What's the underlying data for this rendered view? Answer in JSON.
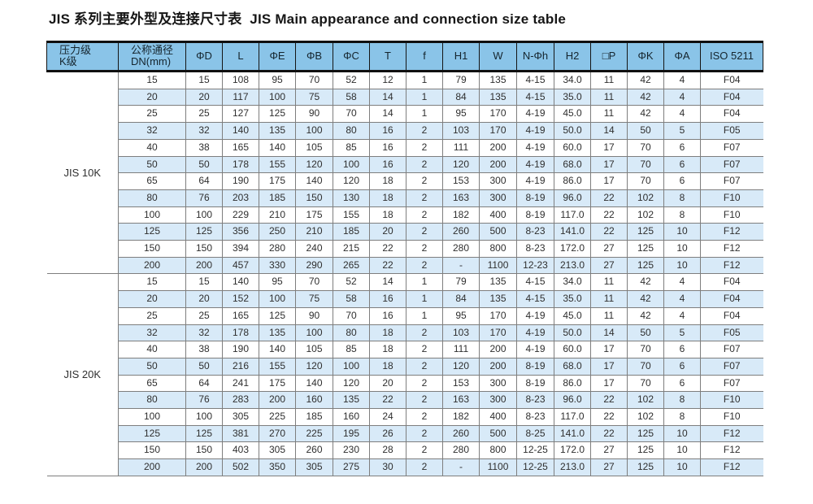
{
  "title": "JIS 系列主要外型及连接尺寸表  JIS Main appearance and connection size table",
  "colors": {
    "header_bg": "#8ac4e8",
    "row_alt_bg": "#d8eaf8",
    "header_border": "#101010",
    "grid_line": "#7e7e7e",
    "text": "#2f2f2f"
  },
  "table": {
    "headers": [
      {
        "lines": [
          "压力级",
          "K级"
        ],
        "align": "left"
      },
      {
        "lines": [
          "公称通径",
          "DN(mm)"
        ],
        "align": "left"
      },
      {
        "lines": [
          "ΦD"
        ]
      },
      {
        "lines": [
          "L"
        ]
      },
      {
        "lines": [
          "ΦE"
        ]
      },
      {
        "lines": [
          "ΦB"
        ]
      },
      {
        "lines": [
          "ΦC"
        ]
      },
      {
        "lines": [
          "T"
        ]
      },
      {
        "lines": [
          "f"
        ]
      },
      {
        "lines": [
          "H1"
        ]
      },
      {
        "lines": [
          "W"
        ]
      },
      {
        "lines": [
          "N-Φh"
        ]
      },
      {
        "lines": [
          "H2"
        ]
      },
      {
        "lines": [
          "□P"
        ]
      },
      {
        "lines": [
          "ΦK"
        ]
      },
      {
        "lines": [
          "ΦA"
        ]
      },
      {
        "lines": [
          "ISO 5211"
        ]
      }
    ],
    "groups": [
      {
        "label": "JIS 10K",
        "rows": [
          [
            "15",
            "15",
            "108",
            "95",
            "70",
            "52",
            "12",
            "1",
            "79",
            "135",
            "4-15",
            "34.0",
            "11",
            "42",
            "4",
            "F04"
          ],
          [
            "20",
            "20",
            "117",
            "100",
            "75",
            "58",
            "14",
            "1",
            "84",
            "135",
            "4-15",
            "35.0",
            "11",
            "42",
            "4",
            "F04"
          ],
          [
            "25",
            "25",
            "127",
            "125",
            "90",
            "70",
            "14",
            "1",
            "95",
            "170",
            "4-19",
            "45.0",
            "11",
            "42",
            "4",
            "F04"
          ],
          [
            "32",
            "32",
            "140",
            "135",
            "100",
            "80",
            "16",
            "2",
            "103",
            "170",
            "4-19",
            "50.0",
            "14",
            "50",
            "5",
            "F05"
          ],
          [
            "40",
            "38",
            "165",
            "140",
            "105",
            "85",
            "16",
            "2",
            "111",
            "200",
            "4-19",
            "60.0",
            "17",
            "70",
            "6",
            "F07"
          ],
          [
            "50",
            "50",
            "178",
            "155",
            "120",
            "100",
            "16",
            "2",
            "120",
            "200",
            "4-19",
            "68.0",
            "17",
            "70",
            "6",
            "F07"
          ],
          [
            "65",
            "64",
            "190",
            "175",
            "140",
            "120",
            "18",
            "2",
            "153",
            "300",
            "4-19",
            "86.0",
            "17",
            "70",
            "6",
            "F07"
          ],
          [
            "80",
            "76",
            "203",
            "185",
            "150",
            "130",
            "18",
            "2",
            "163",
            "300",
            "8-19",
            "96.0",
            "22",
            "102",
            "8",
            "F10"
          ],
          [
            "100",
            "100",
            "229",
            "210",
            "175",
            "155",
            "18",
            "2",
            "182",
            "400",
            "8-19",
            "117.0",
            "22",
            "102",
            "8",
            "F10"
          ],
          [
            "125",
            "125",
            "356",
            "250",
            "210",
            "185",
            "20",
            "2",
            "260",
            "500",
            "8-23",
            "141.0",
            "22",
            "125",
            "10",
            "F12"
          ],
          [
            "150",
            "150",
            "394",
            "280",
            "240",
            "215",
            "22",
            "2",
            "280",
            "800",
            "8-23",
            "172.0",
            "27",
            "125",
            "10",
            "F12"
          ],
          [
            "200",
            "200",
            "457",
            "330",
            "290",
            "265",
            "22",
            "2",
            "-",
            "1100",
            "12-23",
            "213.0",
            "27",
            "125",
            "10",
            "F12"
          ]
        ]
      },
      {
        "label": "JIS 20K",
        "rows": [
          [
            "15",
            "15",
            "140",
            "95",
            "70",
            "52",
            "14",
            "1",
            "79",
            "135",
            "4-15",
            "34.0",
            "11",
            "42",
            "4",
            "F04"
          ],
          [
            "20",
            "20",
            "152",
            "100",
            "75",
            "58",
            "16",
            "1",
            "84",
            "135",
            "4-15",
            "35.0",
            "11",
            "42",
            "4",
            "F04"
          ],
          [
            "25",
            "25",
            "165",
            "125",
            "90",
            "70",
            "16",
            "1",
            "95",
            "170",
            "4-19",
            "45.0",
            "11",
            "42",
            "4",
            "F04"
          ],
          [
            "32",
            "32",
            "178",
            "135",
            "100",
            "80",
            "18",
            "2",
            "103",
            "170",
            "4-19",
            "50.0",
            "14",
            "50",
            "5",
            "F05"
          ],
          [
            "40",
            "38",
            "190",
            "140",
            "105",
            "85",
            "18",
            "2",
            "111",
            "200",
            "4-19",
            "60.0",
            "17",
            "70",
            "6",
            "F07"
          ],
          [
            "50",
            "50",
            "216",
            "155",
            "120",
            "100",
            "18",
            "2",
            "120",
            "200",
            "8-19",
            "68.0",
            "17",
            "70",
            "6",
            "F07"
          ],
          [
            "65",
            "64",
            "241",
            "175",
            "140",
            "120",
            "20",
            "2",
            "153",
            "300",
            "8-19",
            "86.0",
            "17",
            "70",
            "6",
            "F07"
          ],
          [
            "80",
            "76",
            "283",
            "200",
            "160",
            "135",
            "22",
            "2",
            "163",
            "300",
            "8-23",
            "96.0",
            "22",
            "102",
            "8",
            "F10"
          ],
          [
            "100",
            "100",
            "305",
            "225",
            "185",
            "160",
            "24",
            "2",
            "182",
            "400",
            "8-23",
            "117.0",
            "22",
            "102",
            "8",
            "F10"
          ],
          [
            "125",
            "125",
            "381",
            "270",
            "225",
            "195",
            "26",
            "2",
            "260",
            "500",
            "8-25",
            "141.0",
            "22",
            "125",
            "10",
            "F12"
          ],
          [
            "150",
            "150",
            "403",
            "305",
            "260",
            "230",
            "28",
            "2",
            "280",
            "800",
            "12-25",
            "172.0",
            "27",
            "125",
            "10",
            "F12"
          ],
          [
            "200",
            "200",
            "502",
            "350",
            "305",
            "275",
            "30",
            "2",
            "-",
            "1100",
            "12-25",
            "213.0",
            "27",
            "125",
            "10",
            "F12"
          ]
        ]
      }
    ]
  }
}
